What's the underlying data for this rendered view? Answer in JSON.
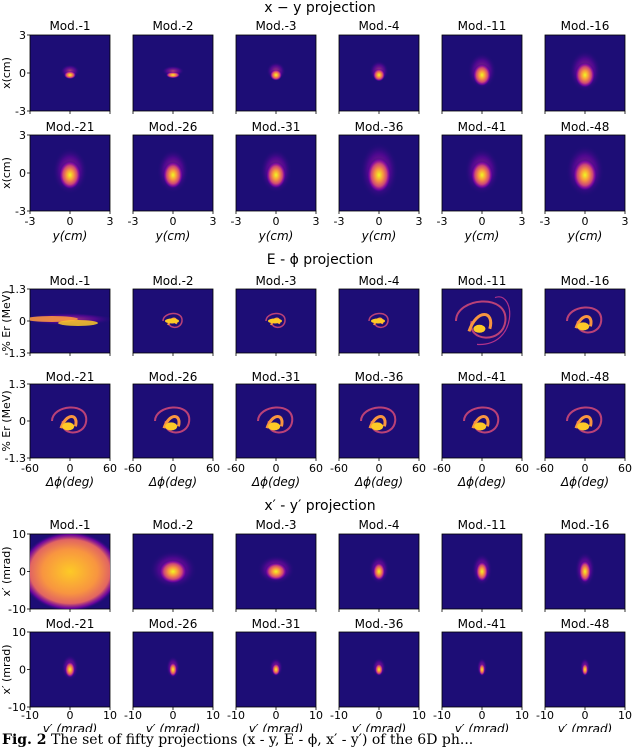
{
  "sections": [
    {
      "title": "x − y projection",
      "ylabel": "x(cm)",
      "xlabel": "y(cm)",
      "xticks": [
        "-3",
        "0",
        "3"
      ],
      "yticks": [
        "3",
        "0",
        "-3"
      ],
      "row_labels": [
        [
          "Mod.-1",
          "Mod.-2",
          "Mod.-3",
          "Mod.-4",
          "Mod.-11",
          "Mod.-16"
        ],
        [
          "Mod.-21",
          "Mod.-26",
          "Mod.-31",
          "Mod.-36",
          "Mod.-41",
          "Mod.-48"
        ]
      ]
    },
    {
      "title": "E - ϕ projection",
      "ylabel": "% Er (MeV)",
      "xlabel": "Δϕ(deg)",
      "xticks": [
        "-60",
        "0",
        "60"
      ],
      "yticks": [
        "1.3",
        "0",
        "-1.3"
      ],
      "row_labels": [
        [
          "Mod.-1",
          "Mod.-2",
          "Mod.-3",
          "Mod.-4",
          "Mod.-11",
          "Mod.-16"
        ],
        [
          "Mod.-21",
          "Mod.-26",
          "Mod.-31",
          "Mod.-36",
          "Mod.-41",
          "Mod.-48"
        ]
      ]
    },
    {
      "title": "x′ - y′ projection",
      "ylabel": "x′ (mrad)",
      "xlabel": "y′ (mrad)",
      "xticks": [
        "-10",
        "0",
        "10"
      ],
      "yticks": [
        "10",
        "0",
        "-10"
      ],
      "row_labels": [
        [
          "Mod.-1",
          "Mod.-2",
          "Mod.-3",
          "Mod.-4",
          "Mod.-11",
          "Mod.-16"
        ],
        [
          "Mod.-21",
          "Mod.-26",
          "Mod.-31",
          "Mod.-36",
          "Mod.-41",
          "Mod.-48"
        ]
      ]
    }
  ],
  "caption": {
    "label": "Fig. 2",
    "text": "The set of fifty projections (x - y, E - ϕ, x′ - y′) of the 6D ph..."
  },
  "colors": {
    "background": "#1d0d76",
    "cmap": [
      "#0d0887",
      "#7e03a8",
      "#cc4778",
      "#f89540",
      "#f0f921"
    ]
  },
  "chart_data": [
    {
      "type": "heatmap",
      "title": "x − y projection",
      "xlabel": "y(cm)",
      "ylabel": "x(cm)",
      "xlim": [
        -3,
        3
      ],
      "ylim": [
        -3,
        3
      ],
      "colormap": "plasma",
      "panels": [
        "Mod.-1",
        "Mod.-2",
        "Mod.-3",
        "Mod.-4",
        "Mod.-11",
        "Mod.-16",
        "Mod.-21",
        "Mod.-26",
        "Mod.-31",
        "Mod.-36",
        "Mod.-41",
        "Mod.-48"
      ]
    },
    {
      "type": "heatmap",
      "title": "E - ϕ projection",
      "xlabel": "Δϕ(deg)",
      "ylabel": "% Er (MeV)",
      "xlim": [
        -60,
        60
      ],
      "ylim": [
        -1.3,
        1.3
      ],
      "colormap": "plasma",
      "panels": [
        "Mod.-1",
        "Mod.-2",
        "Mod.-3",
        "Mod.-4",
        "Mod.-11",
        "Mod.-16",
        "Mod.-21",
        "Mod.-26",
        "Mod.-31",
        "Mod.-36",
        "Mod.-41",
        "Mod.-48"
      ]
    },
    {
      "type": "heatmap",
      "title": "x′ - y′ projection",
      "xlabel": "y′ (mrad)",
      "ylabel": "x′ (mrad)",
      "xlim": [
        -10,
        10
      ],
      "ylim": [
        -10,
        10
      ],
      "colormap": "plasma",
      "panels": [
        "Mod.-1",
        "Mod.-2",
        "Mod.-3",
        "Mod.-4",
        "Mod.-11",
        "Mod.-16",
        "Mod.-21",
        "Mod.-26",
        "Mod.-31",
        "Mod.-36",
        "Mod.-41",
        "Mod.-48"
      ]
    }
  ]
}
